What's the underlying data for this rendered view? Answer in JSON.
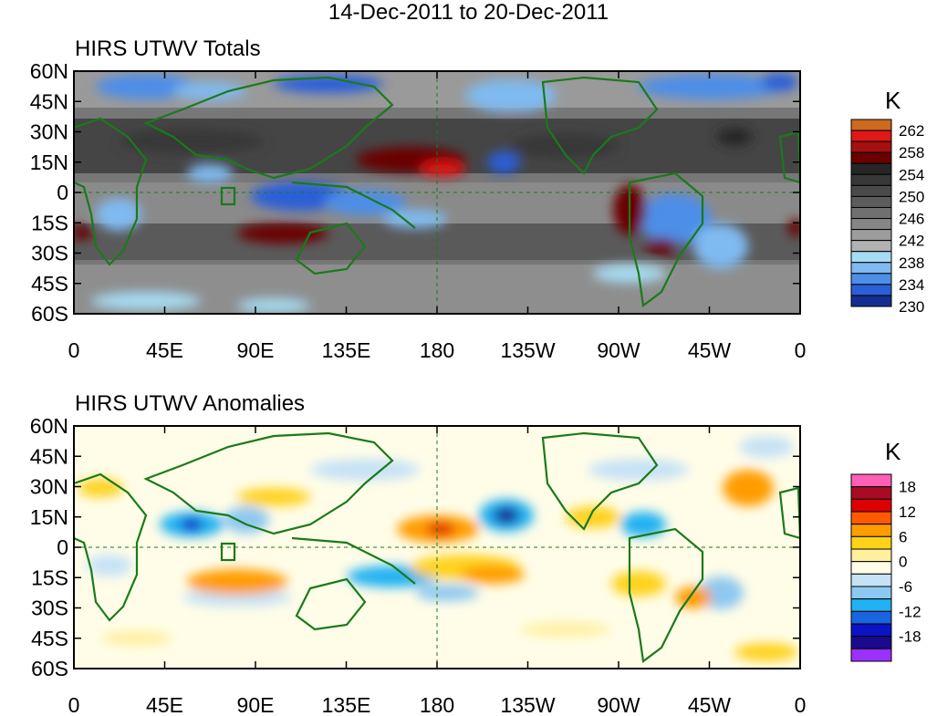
{
  "title": "14-Dec-2011 to 20-Dec-2011",
  "lat_labels": [
    "60N",
    "45N",
    "30N",
    "15N",
    "0",
    "15S",
    "30S",
    "45S",
    "60S"
  ],
  "lon_labels": [
    "0",
    "45E",
    "90E",
    "135E",
    "180",
    "135W",
    "90W",
    "45W",
    "0"
  ],
  "panels": [
    {
      "title": "HIRS UTWV Totals",
      "unit": "K",
      "colorbar_labels": [
        "262",
        "258",
        "254",
        "250",
        "246",
        "242",
        "238",
        "234",
        "230"
      ],
      "colors": [
        "#cc6a20",
        "#e01818",
        "#a51010",
        "#6a0000",
        "#262626",
        "#383838",
        "#4a4a4a",
        "#5c5c5c",
        "#707070",
        "#868686",
        "#9c9c9c",
        "#b2b2b2",
        "#a6dcf2",
        "#7fbaf0",
        "#4d8ee8",
        "#2a5fd8",
        "#142e90"
      ]
    },
    {
      "title": "HIRS UTWV Anomalies",
      "unit": "K",
      "colorbar_labels": [
        "18",
        "12",
        "6",
        "0",
        "-6",
        "-12",
        "-18"
      ],
      "colors": [
        "#ff5fb4",
        "#a80c24",
        "#dc0000",
        "#ff5a00",
        "#ff9c00",
        "#ffd21a",
        "#fff0a0",
        "#fffde8",
        "#c6e2f6",
        "#8ec8f0",
        "#20b2f2",
        "#1a64e0",
        "#0a14c4",
        "#1a0a8e",
        "#9b30ff"
      ]
    }
  ]
}
